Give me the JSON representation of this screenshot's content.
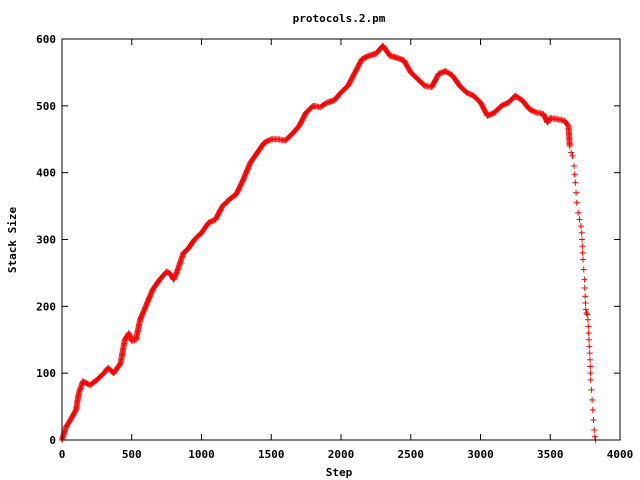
{
  "chart_data": {
    "type": "scatter",
    "title": "protocols.2.pm",
    "xlabel": "Step",
    "ylabel": "Stack Size",
    "xlim": [
      0,
      4000
    ],
    "ylim": [
      0,
      600
    ],
    "xticks": [
      0,
      500,
      1000,
      1500,
      2000,
      2500,
      3000,
      3500,
      4000
    ],
    "yticks": [
      0,
      100,
      200,
      300,
      400,
      500,
      600
    ],
    "marker": "plus",
    "color": "#ff0000",
    "grid": false,
    "series": [
      {
        "points": [
          [
            0,
            0
          ],
          [
            30,
            20
          ],
          [
            60,
            30
          ],
          [
            100,
            45
          ],
          [
            120,
            70
          ],
          [
            150,
            88
          ],
          [
            200,
            82
          ],
          [
            250,
            90
          ],
          [
            300,
            100
          ],
          [
            330,
            108
          ],
          [
            370,
            100
          ],
          [
            420,
            115
          ],
          [
            450,
            150
          ],
          [
            480,
            160
          ],
          [
            500,
            148
          ],
          [
            530,
            150
          ],
          [
            560,
            180
          ],
          [
            600,
            200
          ],
          [
            650,
            225
          ],
          [
            700,
            240
          ],
          [
            750,
            252
          ],
          [
            780,
            248
          ],
          [
            800,
            240
          ],
          [
            830,
            255
          ],
          [
            870,
            280
          ],
          [
            900,
            285
          ],
          [
            950,
            300
          ],
          [
            1000,
            310
          ],
          [
            1050,
            325
          ],
          [
            1100,
            330
          ],
          [
            1150,
            350
          ],
          [
            1200,
            360
          ],
          [
            1250,
            368
          ],
          [
            1300,
            390
          ],
          [
            1350,
            415
          ],
          [
            1400,
            430
          ],
          [
            1450,
            445
          ],
          [
            1500,
            450
          ],
          [
            1550,
            450
          ],
          [
            1600,
            448
          ],
          [
            1650,
            458
          ],
          [
            1700,
            470
          ],
          [
            1750,
            490
          ],
          [
            1800,
            500
          ],
          [
            1850,
            498
          ],
          [
            1900,
            505
          ],
          [
            1950,
            508
          ],
          [
            2000,
            520
          ],
          [
            2050,
            530
          ],
          [
            2100,
            550
          ],
          [
            2150,
            570
          ],
          [
            2200,
            575
          ],
          [
            2250,
            578
          ],
          [
            2300,
            590
          ],
          [
            2350,
            575
          ],
          [
            2400,
            572
          ],
          [
            2450,
            568
          ],
          [
            2500,
            550
          ],
          [
            2550,
            540
          ],
          [
            2600,
            530
          ],
          [
            2650,
            528
          ],
          [
            2700,
            548
          ],
          [
            2750,
            552
          ],
          [
            2800,
            545
          ],
          [
            2850,
            530
          ],
          [
            2900,
            520
          ],
          [
            2950,
            515
          ],
          [
            3000,
            505
          ],
          [
            3050,
            485
          ],
          [
            3100,
            490
          ],
          [
            3150,
            500
          ],
          [
            3200,
            505
          ],
          [
            3250,
            515
          ],
          [
            3300,
            508
          ],
          [
            3350,
            495
          ],
          [
            3400,
            490
          ],
          [
            3450,
            488
          ],
          [
            3480,
            475
          ],
          [
            3500,
            482
          ],
          [
            3550,
            480
          ],
          [
            3600,
            478
          ],
          [
            3630,
            470
          ],
          [
            3640,
            440
          ],
          [
            3650,
            430
          ],
          [
            3660,
            425
          ],
          [
            3670,
            410
          ],
          [
            3680,
            385
          ],
          [
            3685,
            370
          ],
          [
            3690,
            355
          ],
          [
            3700,
            340
          ],
          [
            3710,
            330
          ],
          [
            3720,
            320
          ],
          [
            3725,
            310
          ],
          [
            3730,
            290
          ],
          [
            3735,
            270
          ],
          [
            3740,
            255
          ],
          [
            3745,
            240
          ],
          [
            3750,
            215
          ],
          [
            3755,
            195
          ],
          [
            3760,
            190
          ],
          [
            3765,
            188
          ],
          [
            3770,
            180
          ],
          [
            3775,
            160
          ],
          [
            3780,
            140
          ],
          [
            3785,
            120
          ],
          [
            3790,
            90
          ],
          [
            3795,
            75
          ],
          [
            3800,
            60
          ],
          [
            3805,
            45
          ],
          [
            3810,
            30
          ],
          [
            3815,
            15
          ],
          [
            3820,
            5
          ],
          [
            3825,
            0
          ]
        ]
      }
    ]
  }
}
